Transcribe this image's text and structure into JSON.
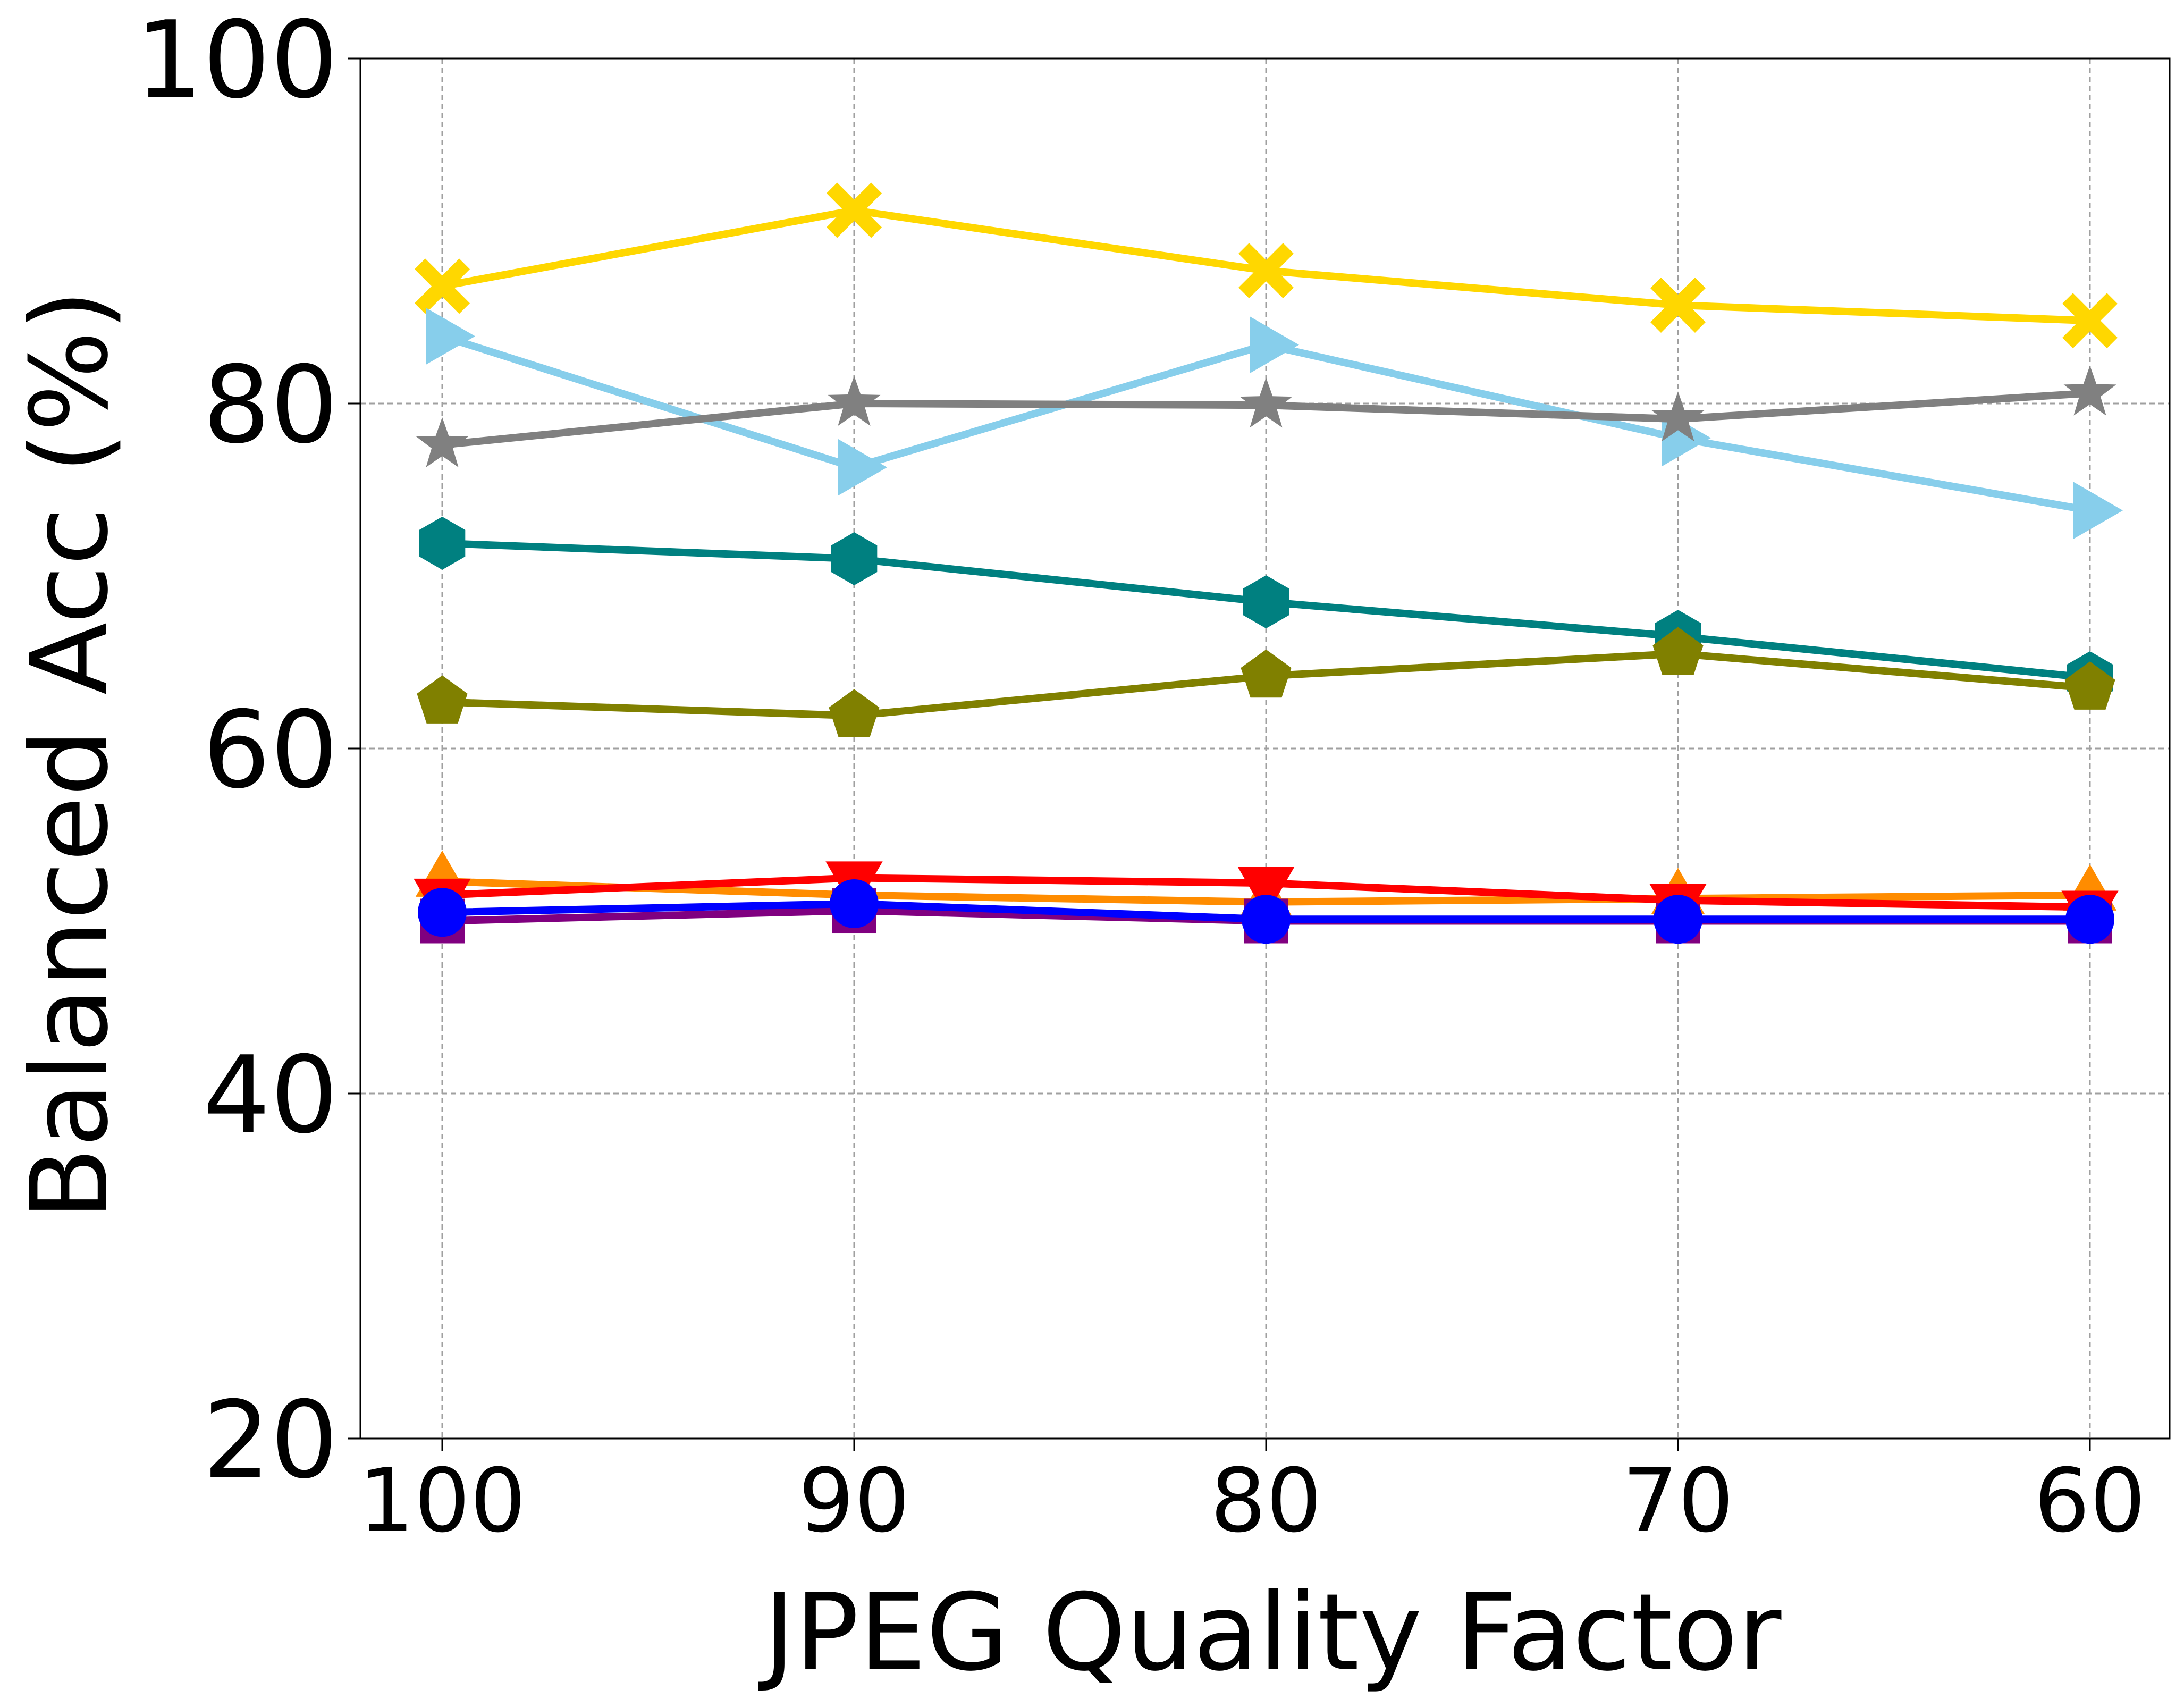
{
  "chart_data": {
    "type": "line",
    "title": "",
    "xlabel": "JPEG Quality Factor",
    "ylabel": "Balanced Acc (%)",
    "x": [
      100,
      90,
      80,
      70,
      60
    ],
    "x_tick_labels": [
      "100",
      "90",
      "80",
      "70",
      "60"
    ],
    "y_ticks": [
      20,
      40,
      60,
      80,
      100
    ],
    "y_tick_labels": [
      "20",
      "40",
      "60",
      "80",
      "100"
    ],
    "ylim": [
      20,
      100
    ],
    "x_reversed": true,
    "grid": true,
    "series": [
      {
        "name": "series-gold-x",
        "color": "#FFD700",
        "marker": "X",
        "values": [
          86.8,
          91.2,
          87.7,
          85.7,
          84.8
        ]
      },
      {
        "name": "series-skyblue-triangle-right",
        "color": "#87CEEB",
        "marker": "triangle-right",
        "values": [
          83.9,
          76.3,
          83.4,
          78.0,
          73.8
        ]
      },
      {
        "name": "series-gray-star",
        "color": "#808080",
        "marker": "star",
        "values": [
          77.6,
          80.0,
          79.9,
          79.1,
          80.6
        ]
      },
      {
        "name": "series-teal-hexagon",
        "color": "#008080",
        "marker": "hexagon",
        "values": [
          71.9,
          71.0,
          68.5,
          66.5,
          64.1
        ]
      },
      {
        "name": "series-olive-pentagon",
        "color": "#808000",
        "marker": "pentagon",
        "values": [
          62.7,
          61.9,
          64.2,
          65.5,
          63.5
        ]
      },
      {
        "name": "series-orange-triangle-up",
        "color": "#FF8C00",
        "marker": "triangle-up",
        "values": [
          52.3,
          51.5,
          51.1,
          51.3,
          51.5
        ]
      },
      {
        "name": "series-purple-square",
        "color": "#800080",
        "marker": "square",
        "values": [
          50.0,
          50.6,
          50.0,
          50.0,
          50.0
        ]
      },
      {
        "name": "series-red-triangle-down",
        "color": "#FF0000",
        "marker": "triangle-down",
        "values": [
          51.5,
          52.5,
          52.2,
          51.2,
          50.8
        ]
      },
      {
        "name": "series-blue-circle",
        "color": "#0000FF",
        "marker": "circle",
        "values": [
          50.5,
          51.0,
          50.1,
          50.1,
          50.1
        ]
      }
    ]
  }
}
